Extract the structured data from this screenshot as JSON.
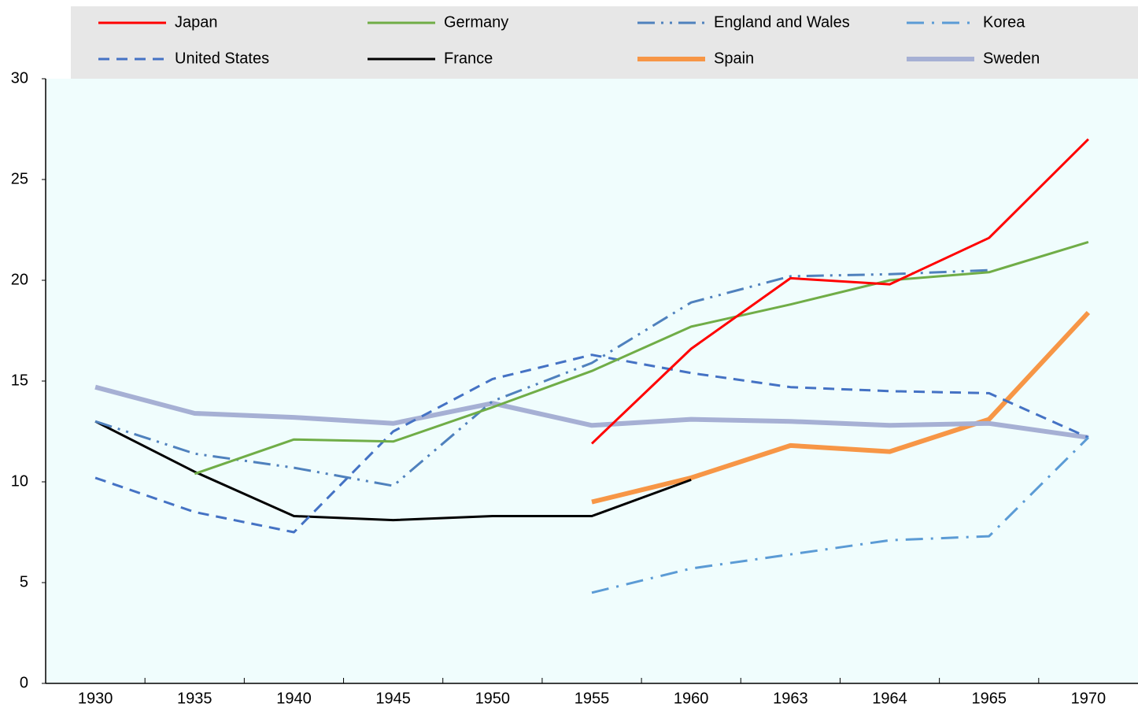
{
  "chart_data": {
    "type": "line",
    "categories": [
      "1930",
      "1935",
      "1940",
      "1945",
      "1950",
      "1955",
      "1960",
      "1963",
      "1964",
      "1965",
      "1970"
    ],
    "series": [
      {
        "name": "Japan",
        "color": "#ff0000",
        "values": [
          null,
          null,
          null,
          null,
          null,
          11.9,
          16.6,
          20.1,
          19.8,
          22.1,
          27.0
        ]
      },
      {
        "name": "Germany",
        "color": "#70ad47",
        "values": [
          null,
          10.4,
          12.1,
          12.0,
          13.7,
          15.5,
          17.7,
          18.8,
          20.0,
          20.4,
          21.9
        ]
      },
      {
        "name": "England and Wales",
        "color": "#4f81bd",
        "values": [
          13.0,
          11.4,
          10.7,
          9.8,
          14.0,
          15.9,
          18.9,
          20.2,
          20.3,
          20.5,
          null
        ]
      },
      {
        "name": "Korea",
        "color": "#5b9bd5",
        "values": [
          null,
          null,
          null,
          null,
          null,
          4.5,
          5.7,
          6.4,
          7.1,
          7.3,
          12.2
        ]
      },
      {
        "name": "United States",
        "color": "#4472c4",
        "values": [
          10.2,
          8.5,
          7.5,
          12.5,
          15.1,
          16.3,
          15.4,
          14.7,
          14.5,
          14.4,
          12.2
        ]
      },
      {
        "name": "France",
        "color": "#000000",
        "values": [
          13.0,
          10.5,
          8.3,
          8.1,
          8.3,
          8.3,
          10.1,
          null,
          null,
          null,
          null
        ]
      },
      {
        "name": "Spain",
        "color": "#f79646",
        "values": [
          null,
          null,
          null,
          null,
          null,
          9.0,
          10.2,
          11.8,
          11.5,
          13.1,
          18.4
        ]
      },
      {
        "name": "Sweden",
        "color": "#a6b0d4",
        "values": [
          14.7,
          13.4,
          13.2,
          12.9,
          13.9,
          12.8,
          13.1,
          13.0,
          12.8,
          12.9,
          12.2
        ]
      }
    ],
    "ylim": [
      0,
      30
    ],
    "yticks": [
      0,
      5,
      10,
      15,
      20,
      25,
      30
    ],
    "grid": false
  }
}
